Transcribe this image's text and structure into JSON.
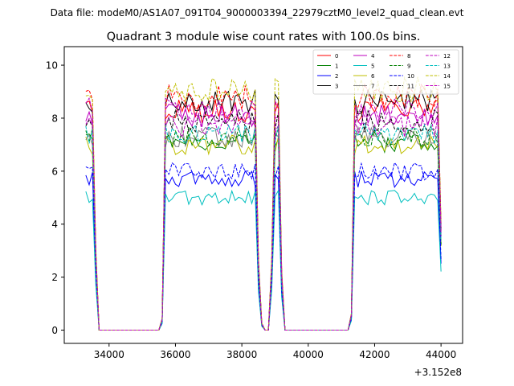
{
  "figure": {
    "suptitle": "Data file: modeM0/AS1A07_091T04_9000003394_22979cztM0_level2_quad_clean.evt"
  },
  "chart_data": {
    "type": "line",
    "title": "Quadrant 3 module wise count rates with 100.0s bins.",
    "xlabel": "",
    "ylabel": "",
    "x_offset_label": "+3.152e8",
    "xlim": [
      32650,
      44650
    ],
    "ylim": [
      -0.5,
      10.7
    ],
    "xticks": [
      34000,
      36000,
      38000,
      40000,
      42000,
      44000
    ],
    "xtick_labels": [
      "34000",
      "36000",
      "38000",
      "40000",
      "42000",
      "44000"
    ],
    "yticks": [
      0,
      2,
      4,
      6,
      8,
      10
    ],
    "ytick_labels": [
      "0",
      "2",
      "4",
      "6",
      "8",
      "10"
    ],
    "legend_position": "top-right",
    "x_grid": {
      "start": 33300,
      "step": 100,
      "count": 108
    },
    "segments": [
      {
        "from": 0,
        "to": 2,
        "level": 1.0
      },
      {
        "from": 3,
        "to": 3,
        "level": 0.35
      },
      {
        "from": 4,
        "to": 22,
        "level": 0
      },
      {
        "from": 23,
        "to": 23,
        "level": 0.05
      },
      {
        "from": 24,
        "to": 51,
        "level": 1.0
      },
      {
        "from": 52,
        "to": 52,
        "level": 0.3
      },
      {
        "from": 53,
        "to": 53,
        "level": 0.03
      },
      {
        "from": 54,
        "to": 55,
        "level": 0
      },
      {
        "from": 56,
        "to": 56,
        "level": 0.3
      },
      {
        "from": 57,
        "to": 58,
        "level": 1.0
      },
      {
        "from": 59,
        "to": 59,
        "level": 0.25
      },
      {
        "from": 60,
        "to": 79,
        "level": 0
      },
      {
        "from": 80,
        "to": 80,
        "level": 0.07
      },
      {
        "from": 81,
        "to": 106,
        "level": 1.0
      },
      {
        "from": 107,
        "to": 107,
        "level": 0.45
      }
    ],
    "series": [
      {
        "name": "0",
        "color": "#ff0000",
        "dash": "solid",
        "mean": 8.3
      },
      {
        "name": "1",
        "color": "#008000",
        "dash": "solid",
        "mean": 7.1
      },
      {
        "name": "2",
        "color": "#0000ff",
        "dash": "solid",
        "mean": 5.7
      },
      {
        "name": "3",
        "color": "#000000",
        "dash": "solid",
        "mean": 8.6
      },
      {
        "name": "4",
        "color": "#bf00bf",
        "dash": "solid",
        "mean": 8.1
      },
      {
        "name": "5",
        "color": "#00bfbf",
        "dash": "solid",
        "mean": 5.0
      },
      {
        "name": "6",
        "color": "#bfbf00",
        "dash": "solid",
        "mean": 7.0
      },
      {
        "name": "7",
        "color": "#808080",
        "dash": "solid",
        "mean": 7.3
      },
      {
        "name": "8",
        "color": "#ff0000",
        "dash": "dashed",
        "mean": 8.8
      },
      {
        "name": "9",
        "color": "#008000",
        "dash": "dashed",
        "mean": 7.3
      },
      {
        "name": "10",
        "color": "#0000ff",
        "dash": "dashed",
        "mean": 6.0
      },
      {
        "name": "11",
        "color": "#000000",
        "dash": "dashed",
        "mean": 7.9
      },
      {
        "name": "12",
        "color": "#bf00bf",
        "dash": "dashed",
        "mean": 7.7
      },
      {
        "name": "13",
        "color": "#00bfbf",
        "dash": "dashed",
        "mean": 7.4
      },
      {
        "name": "14",
        "color": "#bfbf00",
        "dash": "dashed",
        "mean": 9.1
      },
      {
        "name": "15",
        "color": "#bf00bf",
        "dash": "dashed",
        "mean": 8.3
      }
    ]
  }
}
